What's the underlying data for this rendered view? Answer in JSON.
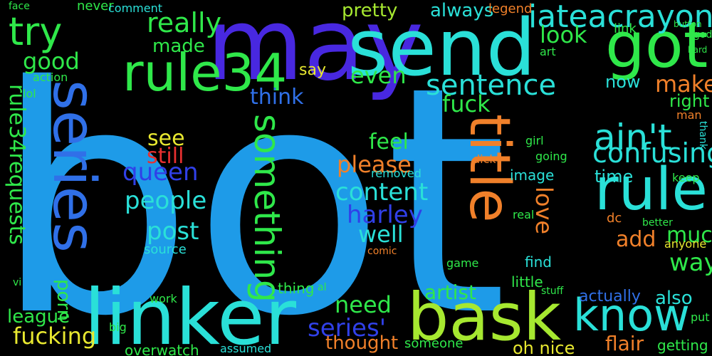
{
  "palette": {
    "background": "#000000",
    "light_blue": "#1e9be8",
    "cyan": "#2ae0d8",
    "green": "#2fe84a",
    "lime": "#a6e830",
    "yellow": "#e8e830",
    "orange": "#f0802a",
    "red": "#e83030",
    "blue": "#3040e8",
    "indigo": "#4828e0",
    "teal": "#1fc8b0"
  },
  "words": [
    {
      "text": "bot",
      "color": "#1e9be8"
    },
    {
      "text": "may",
      "color": "#4828e0"
    },
    {
      "text": "send",
      "color": "#2ae0d8"
    },
    {
      "text": "linker",
      "color": "#2ae0d8"
    },
    {
      "text": "bask",
      "color": "#a6e830"
    },
    {
      "text": "rule34",
      "color": "#2fe84a"
    },
    {
      "text": "got",
      "color": "#2fe84a"
    },
    {
      "text": "series",
      "color": "#3070e8"
    },
    {
      "text": "rule",
      "color": "#2ae0d8"
    },
    {
      "text": "know",
      "color": "#2ae0d8"
    },
    {
      "text": "title",
      "color": "#f0802a"
    },
    {
      "text": "try",
      "color": "#2fe84a"
    },
    {
      "text": "something",
      "color": "#2fe84a"
    },
    {
      "text": "iateacrayon",
      "color": "#2ae0d8"
    },
    {
      "text": "ain't",
      "color": "#2ae0d8"
    },
    {
      "text": "rule34requests",
      "color": "#2fe84a"
    },
    {
      "text": "confusing",
      "color": "#2ae0d8"
    },
    {
      "text": "sentence",
      "color": "#2ae0d8"
    },
    {
      "text": "fucking",
      "color": "#e8e830"
    },
    {
      "text": "series'",
      "color": "#3040e8"
    },
    {
      "text": "post",
      "color": "#2ae0d8"
    },
    {
      "text": "people",
      "color": "#2ae0d8"
    },
    {
      "text": "queen",
      "color": "#3040e8"
    },
    {
      "text": "content",
      "color": "#2ae0d8"
    },
    {
      "text": "harley",
      "color": "#3040e8"
    },
    {
      "text": "really",
      "color": "#2fe84a"
    },
    {
      "text": "look",
      "color": "#2fe84a"
    },
    {
      "text": "good",
      "color": "#2fe84a"
    },
    {
      "text": "make",
      "color": "#f0802a"
    },
    {
      "text": "fuck",
      "color": "#2fe84a"
    },
    {
      "text": "think",
      "color": "#3070e8"
    },
    {
      "text": "even",
      "color": "#2fe84a"
    },
    {
      "text": "way",
      "color": "#2fe84a"
    },
    {
      "text": "add",
      "color": "#f0802a"
    },
    {
      "text": "much",
      "color": "#2fe84a"
    },
    {
      "text": "please",
      "color": "#f0802a"
    },
    {
      "text": "well",
      "color": "#2ae0d8"
    },
    {
      "text": "need",
      "color": "#2fe84a"
    },
    {
      "text": "artist",
      "color": "#2fe84a"
    },
    {
      "text": "flair",
      "color": "#f0802a"
    },
    {
      "text": "also",
      "color": "#2ae0d8"
    },
    {
      "text": "love",
      "color": "#f0802a"
    },
    {
      "text": "porn",
      "color": "#2fe84a"
    },
    {
      "text": "see",
      "color": "#e8e830"
    },
    {
      "text": "still",
      "color": "#e83030"
    },
    {
      "text": "feel",
      "color": "#2fe84a"
    },
    {
      "text": "made",
      "color": "#2fe84a"
    },
    {
      "text": "now",
      "color": "#2ae0d8"
    },
    {
      "text": "right",
      "color": "#2fe84a"
    },
    {
      "text": "time",
      "color": "#2ae0d8"
    },
    {
      "text": "thought",
      "color": "#f0802a"
    },
    {
      "text": "pretty",
      "color": "#a6e830"
    },
    {
      "text": "always",
      "color": "#2ae0d8"
    },
    {
      "text": "actually",
      "color": "#3070e8"
    },
    {
      "text": "oh nice",
      "color": "#e8e830"
    },
    {
      "text": "say",
      "color": "#e8e830"
    },
    {
      "text": "league",
      "color": "#2fe84a"
    },
    {
      "text": "overwatch",
      "color": "#2fe84a"
    },
    {
      "text": "getting",
      "color": "#2fe84a"
    },
    {
      "text": "thing",
      "color": "#2fe84a"
    },
    {
      "text": "little",
      "color": "#2fe84a"
    },
    {
      "text": "find",
      "color": "#2ae0d8"
    },
    {
      "text": "image",
      "color": "#2ae0d8"
    },
    {
      "text": "source",
      "color": "#2ae0d8"
    },
    {
      "text": "link",
      "color": "#2fe84a"
    },
    {
      "text": "legend",
      "color": "#f0802a"
    },
    {
      "text": "never",
      "color": "#2fe84a"
    },
    {
      "text": "comment",
      "color": "#2ae0d8"
    },
    {
      "text": "lol",
      "color": "#2fe84a"
    },
    {
      "text": "action",
      "color": "#2fe84a"
    },
    {
      "text": "going",
      "color": "#2fe84a"
    },
    {
      "text": "girl",
      "color": "#2fe84a"
    },
    {
      "text": "dc",
      "color": "#f0802a"
    },
    {
      "text": "big",
      "color": "#2fe84a"
    },
    {
      "text": "someone",
      "color": "#2fe84a"
    },
    {
      "text": "art",
      "color": "#2fe84a"
    },
    {
      "text": "real",
      "color": "#2fe84a"
    },
    {
      "text": "comic",
      "color": "#f0802a"
    },
    {
      "text": "removed",
      "color": "#2ae0d8"
    },
    {
      "text": "assumed",
      "color": "#2ae0d8"
    },
    {
      "text": "anyone",
      "color": "#e8e830"
    },
    {
      "text": "dick",
      "color": "#f0802a"
    },
    {
      "text": "game",
      "color": "#2fe84a"
    },
    {
      "text": "better",
      "color": "#2fe84a"
    },
    {
      "text": "keep",
      "color": "#2fe84a"
    },
    {
      "text": "man",
      "color": "#f0802a"
    },
    {
      "text": "thank",
      "color": "#2ae0d8"
    },
    {
      "text": "put",
      "color": "#2fe84a"
    },
    {
      "text": "stuff",
      "color": "#2fe84a"
    },
    {
      "text": "work",
      "color": "#2fe84a"
    },
    {
      "text": "vi",
      "color": "#2fe84a"
    },
    {
      "text": "al",
      "color": "#2fe84a"
    },
    {
      "text": "face",
      "color": "#2fe84a"
    },
    {
      "text": "god",
      "color": "#2fe84a"
    },
    {
      "text": "hard",
      "color": "#2fe84a"
    },
    {
      "text": "button",
      "color": "#2fe84a"
    }
  ]
}
